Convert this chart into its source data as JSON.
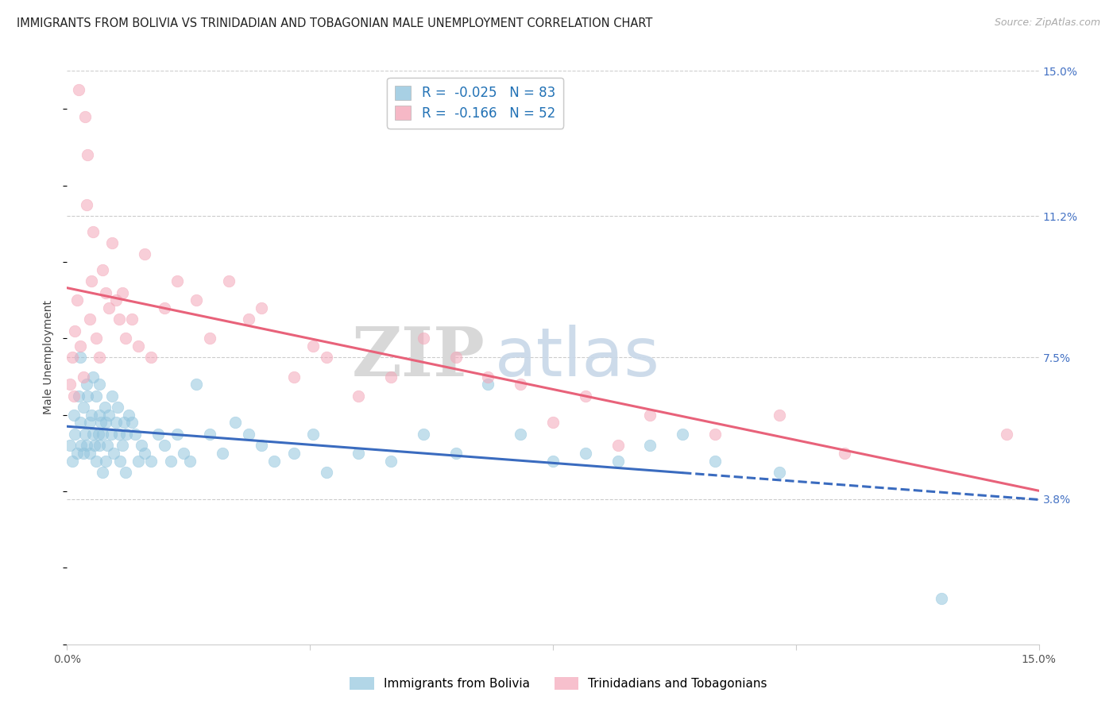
{
  "title": "IMMIGRANTS FROM BOLIVIA VS TRINIDADIAN AND TOBAGONIAN MALE UNEMPLOYMENT CORRELATION CHART",
  "source": "Source: ZipAtlas.com",
  "ylabel": "Male Unemployment",
  "yticks": [
    3.8,
    7.5,
    11.2,
    15.0
  ],
  "xlim": [
    0,
    15
  ],
  "ylim": [
    0,
    15
  ],
  "legend1_label": "Immigrants from Bolivia",
  "legend2_label": "Trinidadians and Tobagonians",
  "R1": -0.025,
  "N1": 83,
  "R2": -0.166,
  "N2": 52,
  "blue_color": "#92c5de",
  "pink_color": "#f4a6b8",
  "blue_line_color": "#3a6bbf",
  "pink_line_color": "#e8627a",
  "watermark_zip": "ZIP",
  "watermark_atlas": "atlas",
  "blue_x": [
    0.05,
    0.08,
    0.1,
    0.12,
    0.15,
    0.18,
    0.2,
    0.2,
    0.22,
    0.25,
    0.25,
    0.28,
    0.3,
    0.3,
    0.32,
    0.35,
    0.35,
    0.38,
    0.4,
    0.4,
    0.42,
    0.45,
    0.45,
    0.48,
    0.5,
    0.5,
    0.5,
    0.52,
    0.55,
    0.55,
    0.58,
    0.6,
    0.6,
    0.62,
    0.65,
    0.68,
    0.7,
    0.72,
    0.75,
    0.78,
    0.8,
    0.82,
    0.85,
    0.88,
    0.9,
    0.92,
    0.95,
    1.0,
    1.05,
    1.1,
    1.15,
    1.2,
    1.3,
    1.4,
    1.5,
    1.6,
    1.7,
    1.8,
    1.9,
    2.0,
    2.2,
    2.4,
    2.6,
    2.8,
    3.0,
    3.2,
    3.5,
    3.8,
    4.0,
    4.5,
    5.0,
    5.5,
    6.0,
    6.5,
    7.0,
    7.5,
    8.0,
    8.5,
    9.0,
    9.5,
    10.0,
    11.0,
    13.5
  ],
  "blue_y": [
    5.2,
    4.8,
    6.0,
    5.5,
    5.0,
    6.5,
    7.5,
    5.8,
    5.2,
    6.2,
    5.0,
    5.5,
    6.8,
    5.2,
    6.5,
    5.8,
    5.0,
    6.0,
    7.0,
    5.5,
    5.2,
    6.5,
    4.8,
    5.5,
    6.8,
    6.0,
    5.2,
    5.8,
    5.5,
    4.5,
    6.2,
    5.8,
    4.8,
    5.2,
    6.0,
    5.5,
    6.5,
    5.0,
    5.8,
    6.2,
    5.5,
    4.8,
    5.2,
    5.8,
    4.5,
    5.5,
    6.0,
    5.8,
    5.5,
    4.8,
    5.2,
    5.0,
    4.8,
    5.5,
    5.2,
    4.8,
    5.5,
    5.0,
    4.8,
    6.8,
    5.5,
    5.0,
    5.8,
    5.5,
    5.2,
    4.8,
    5.0,
    5.5,
    4.5,
    5.0,
    4.8,
    5.5,
    5.0,
    6.8,
    5.5,
    4.8,
    5.0,
    4.8,
    5.2,
    5.5,
    4.8,
    4.5,
    1.2
  ],
  "pink_x": [
    0.05,
    0.08,
    0.1,
    0.12,
    0.15,
    0.18,
    0.2,
    0.25,
    0.28,
    0.3,
    0.32,
    0.35,
    0.38,
    0.4,
    0.45,
    0.5,
    0.55,
    0.6,
    0.65,
    0.7,
    0.75,
    0.8,
    0.85,
    0.9,
    1.0,
    1.1,
    1.2,
    1.3,
    1.5,
    1.7,
    2.0,
    2.2,
    2.5,
    2.8,
    3.0,
    3.5,
    3.8,
    4.0,
    4.5,
    5.0,
    5.5,
    6.0,
    6.5,
    7.0,
    7.5,
    8.0,
    8.5,
    9.0,
    10.0,
    11.0,
    12.0,
    14.5
  ],
  "pink_y": [
    6.8,
    7.5,
    6.5,
    8.2,
    9.0,
    14.5,
    7.8,
    7.0,
    13.8,
    11.5,
    12.8,
    8.5,
    9.5,
    10.8,
    8.0,
    7.5,
    9.8,
    9.2,
    8.8,
    10.5,
    9.0,
    8.5,
    9.2,
    8.0,
    8.5,
    7.8,
    10.2,
    7.5,
    8.8,
    9.5,
    9.0,
    8.0,
    9.5,
    8.5,
    8.8,
    7.0,
    7.8,
    7.5,
    6.5,
    7.0,
    8.0,
    7.5,
    7.0,
    6.8,
    5.8,
    6.5,
    5.2,
    6.0,
    5.5,
    6.0,
    5.0,
    5.5
  ]
}
